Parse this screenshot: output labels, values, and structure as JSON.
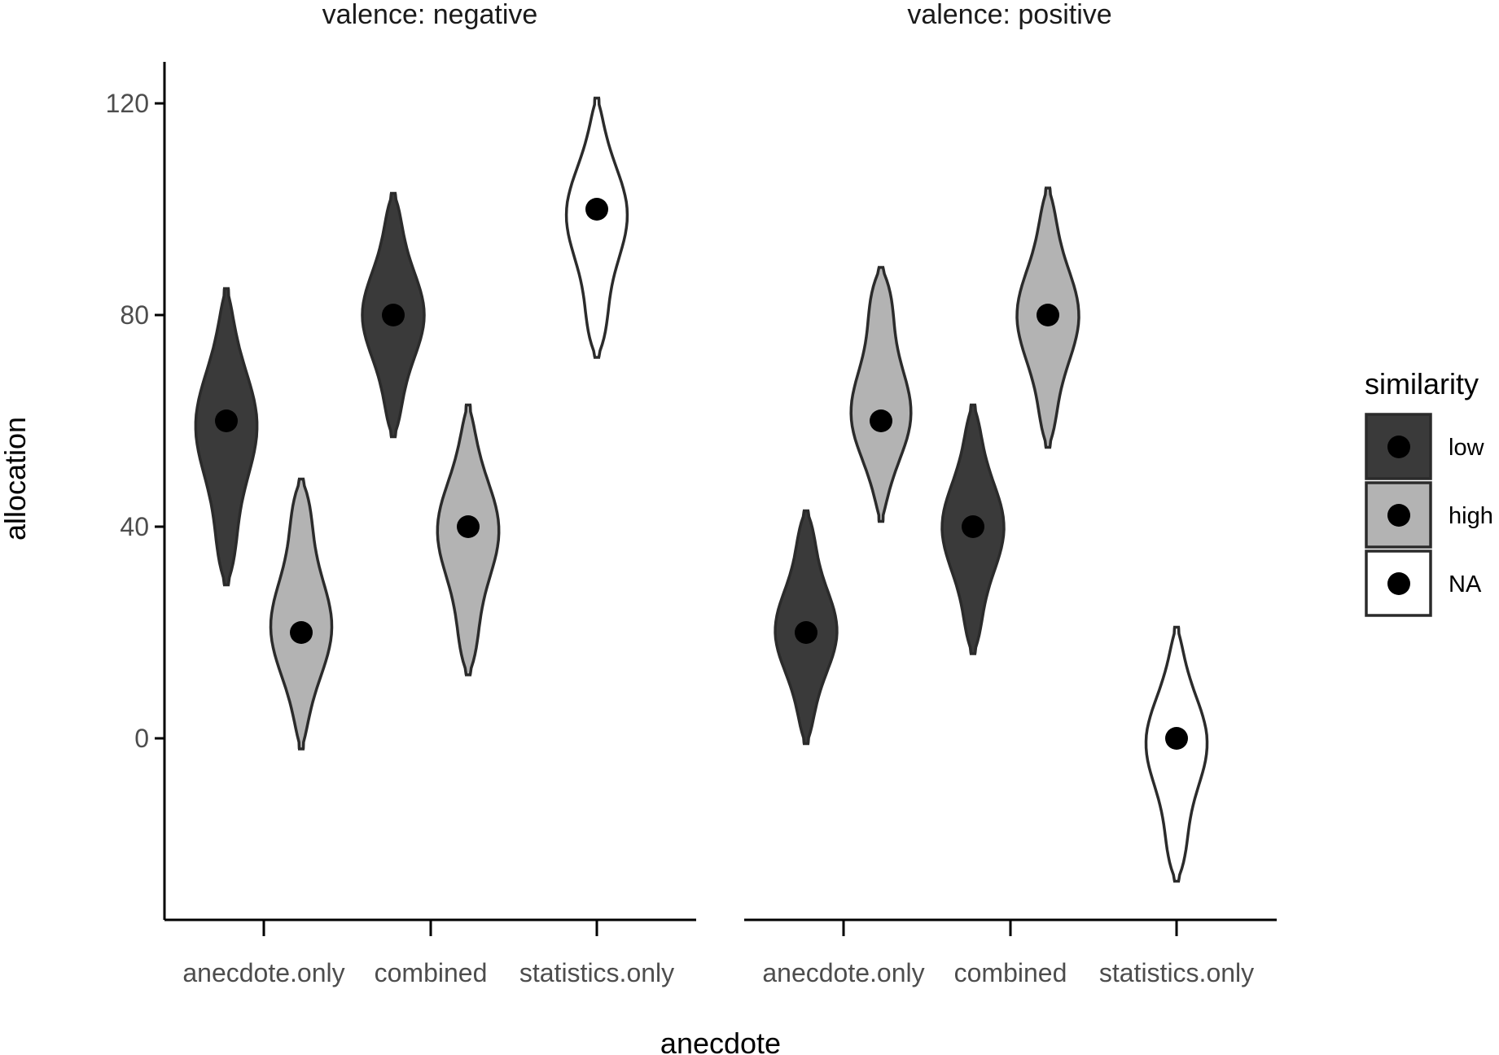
{
  "chart_data": {
    "type": "violin",
    "x_label": "anecdote",
    "y_label": "allocation",
    "legend_title": "similarity",
    "y_ticks": [
      0,
      40,
      80,
      120
    ],
    "ylim": [
      -33,
      129
    ],
    "categories": [
      "anecdote.only",
      "combined",
      "statistics.only"
    ],
    "legend": [
      {
        "label": "low",
        "color": "#3a3a3a"
      },
      {
        "label": "high",
        "color": "#b3b3b3"
      },
      {
        "label": "NA",
        "color": "#ffffff"
      }
    ],
    "facets": [
      {
        "title": "valence: negative",
        "violins": [
          {
            "category": "anecdote.only",
            "similarity": "low",
            "mean": 60,
            "min": 29,
            "max": 85
          },
          {
            "category": "anecdote.only",
            "similarity": "high",
            "mean": 20,
            "min": -2,
            "max": 49
          },
          {
            "category": "combined",
            "similarity": "low",
            "mean": 80,
            "min": 57,
            "max": 103
          },
          {
            "category": "combined",
            "similarity": "high",
            "mean": 40,
            "min": 12,
            "max": 63
          },
          {
            "category": "statistics.only",
            "similarity": "NA",
            "mean": 100,
            "min": 72,
            "max": 121
          }
        ]
      },
      {
        "title": "valence: positive",
        "violins": [
          {
            "category": "anecdote.only",
            "similarity": "low",
            "mean": 20,
            "min": -1,
            "max": 43
          },
          {
            "category": "anecdote.only",
            "similarity": "high",
            "mean": 60,
            "min": 41,
            "max": 89
          },
          {
            "category": "combined",
            "similarity": "low",
            "mean": 40,
            "min": 16,
            "max": 63
          },
          {
            "category": "combined",
            "similarity": "high",
            "mean": 80,
            "min": 55,
            "max": 104
          },
          {
            "category": "statistics.only",
            "similarity": "NA",
            "mean": 0,
            "min": -27,
            "max": 21
          }
        ]
      }
    ]
  }
}
